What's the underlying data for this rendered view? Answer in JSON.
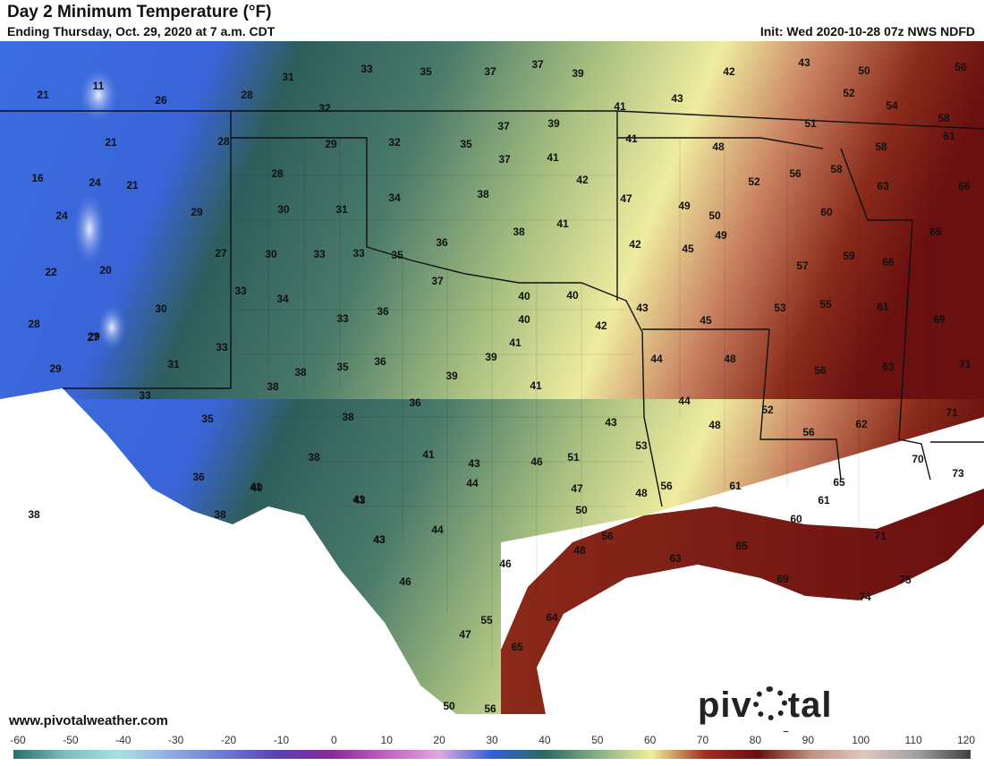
{
  "header": {
    "title": "Day 2 Minimum Temperature (°F)",
    "subtitle": "Ending Thursday, Oct. 29, 2020 at 7 a.m. CDT",
    "init": "Init: Wed 2020-10-28 07z NWS NDFD"
  },
  "footer": {
    "url": "www.pivotalweather.com",
    "brand_left": "piv",
    "brand_right": "tal weather"
  },
  "colorbar": {
    "ticks": [
      "-60",
      "-50",
      "-40",
      "-30",
      "-20",
      "-10",
      "0",
      "10",
      "20",
      "30",
      "40",
      "50",
      "60",
      "70",
      "80",
      "90",
      "100",
      "110",
      "120"
    ],
    "stops": [
      "#2a6e6e",
      "#7fbfbf",
      "#a6e2e2",
      "#8fa8e0",
      "#6a78d0",
      "#5a40b0",
      "#8a2a9a",
      "#c060c0",
      "#e0a8e0",
      "#3060d8",
      "#2e6a60",
      "#88b088",
      "#f0ef9a",
      "#a03020",
      "#6a0e10",
      "#c09080",
      "#e0c8c0",
      "#a0a0a0",
      "#404040"
    ]
  },
  "temps": [
    [
      "11"
    ],
    [
      "21"
    ],
    [
      "26"
    ],
    [
      "28"
    ],
    [
      "31"
    ],
    [
      "33"
    ],
    [
      "35"
    ],
    [
      "37"
    ],
    [
      "37"
    ],
    [
      "39"
    ],
    [
      "42"
    ],
    [
      "43"
    ],
    [
      "50"
    ],
    [
      "56"
    ],
    [
      "32"
    ],
    [
      "21"
    ],
    [
      "28"
    ],
    [
      "29"
    ],
    [
      "32"
    ],
    [
      "35"
    ],
    [
      "37"
    ],
    [
      "39"
    ],
    [
      "41"
    ],
    [
      "41"
    ],
    [
      "43"
    ],
    [
      "52"
    ],
    [
      "54"
    ],
    [
      "58"
    ],
    [
      "61"
    ],
    [
      "16"
    ],
    [
      "24"
    ],
    [
      "21"
    ],
    [
      "28"
    ],
    [
      "37"
    ],
    [
      "41"
    ],
    [
      "42"
    ],
    [
      "51"
    ],
    [
      "48"
    ],
    [
      "56"
    ],
    [
      "58"
    ],
    [
      "58"
    ],
    [
      "63"
    ],
    [
      "66"
    ],
    [
      "24"
    ],
    [
      "29"
    ],
    [
      "30"
    ],
    [
      "31"
    ],
    [
      "34"
    ],
    [
      "38"
    ],
    [
      "41"
    ],
    [
      "47"
    ],
    [
      "49"
    ],
    [
      "50"
    ],
    [
      "52"
    ],
    [
      "60"
    ],
    [
      "65"
    ],
    [
      "22"
    ],
    [
      "20"
    ],
    [
      "27"
    ],
    [
      "30"
    ],
    [
      "33"
    ],
    [
      "33"
    ],
    [
      "35"
    ],
    [
      "36"
    ],
    [
      "38"
    ],
    [
      "42"
    ],
    [
      "45"
    ],
    [
      "49"
    ],
    [
      "57"
    ],
    [
      "59"
    ],
    [
      "66"
    ],
    [
      "28"
    ],
    [
      "27"
    ],
    [
      "30"
    ],
    [
      "33"
    ],
    [
      "34"
    ],
    [
      "37"
    ],
    [
      "40"
    ],
    [
      "40"
    ],
    [
      "43"
    ],
    [
      "45"
    ],
    [
      "53"
    ],
    [
      "55"
    ],
    [
      "61"
    ],
    [
      "69"
    ],
    [
      "29"
    ],
    [
      "29"
    ],
    [
      "33"
    ],
    [
      "33"
    ],
    [
      "36"
    ],
    [
      "40"
    ],
    [
      "42"
    ],
    [
      "41"
    ],
    [
      "48"
    ],
    [
      "56"
    ],
    [
      "63"
    ],
    [
      "71"
    ],
    [
      "31"
    ],
    [
      "38"
    ],
    [
      "35"
    ],
    [
      "36"
    ],
    [
      "38"
    ],
    [
      "39"
    ],
    [
      "41"
    ],
    [
      "44"
    ],
    [
      "44"
    ],
    [
      "38"
    ],
    [
      "36"
    ],
    [
      "39"
    ],
    [
      "52"
    ],
    [
      "71"
    ],
    [
      "33"
    ],
    [
      "35"
    ],
    [
      "38"
    ],
    [
      "41"
    ],
    [
      "43"
    ],
    [
      "48"
    ],
    [
      "56"
    ],
    [
      "62"
    ],
    [
      "70"
    ],
    [
      "38"
    ],
    [
      "41"
    ],
    [
      "43"
    ],
    [
      "43"
    ],
    [
      "46"
    ],
    [
      "51"
    ],
    [
      "53"
    ],
    [
      "56"
    ],
    [
      "61"
    ],
    [
      "65"
    ],
    [
      "73"
    ],
    [
      "36"
    ],
    [
      "40"
    ],
    [
      "41"
    ],
    [
      "43"
    ],
    [
      "44"
    ],
    [
      "47"
    ],
    [
      "48"
    ],
    [
      "61"
    ],
    [
      "60"
    ],
    [
      "38"
    ],
    [
      "43"
    ],
    [
      "44"
    ],
    [
      "50"
    ],
    [
      "56"
    ],
    [
      "65"
    ],
    [
      "71"
    ],
    [
      "43"
    ],
    [
      "46"
    ],
    [
      "48"
    ],
    [
      "63"
    ],
    [
      "69"
    ],
    [
      "75"
    ],
    [
      "74"
    ],
    [
      "46"
    ],
    [
      "64"
    ],
    [
      "55"
    ],
    [
      "47"
    ],
    [
      "65"
    ],
    [
      "50"
    ],
    [
      "56"
    ]
  ]
}
